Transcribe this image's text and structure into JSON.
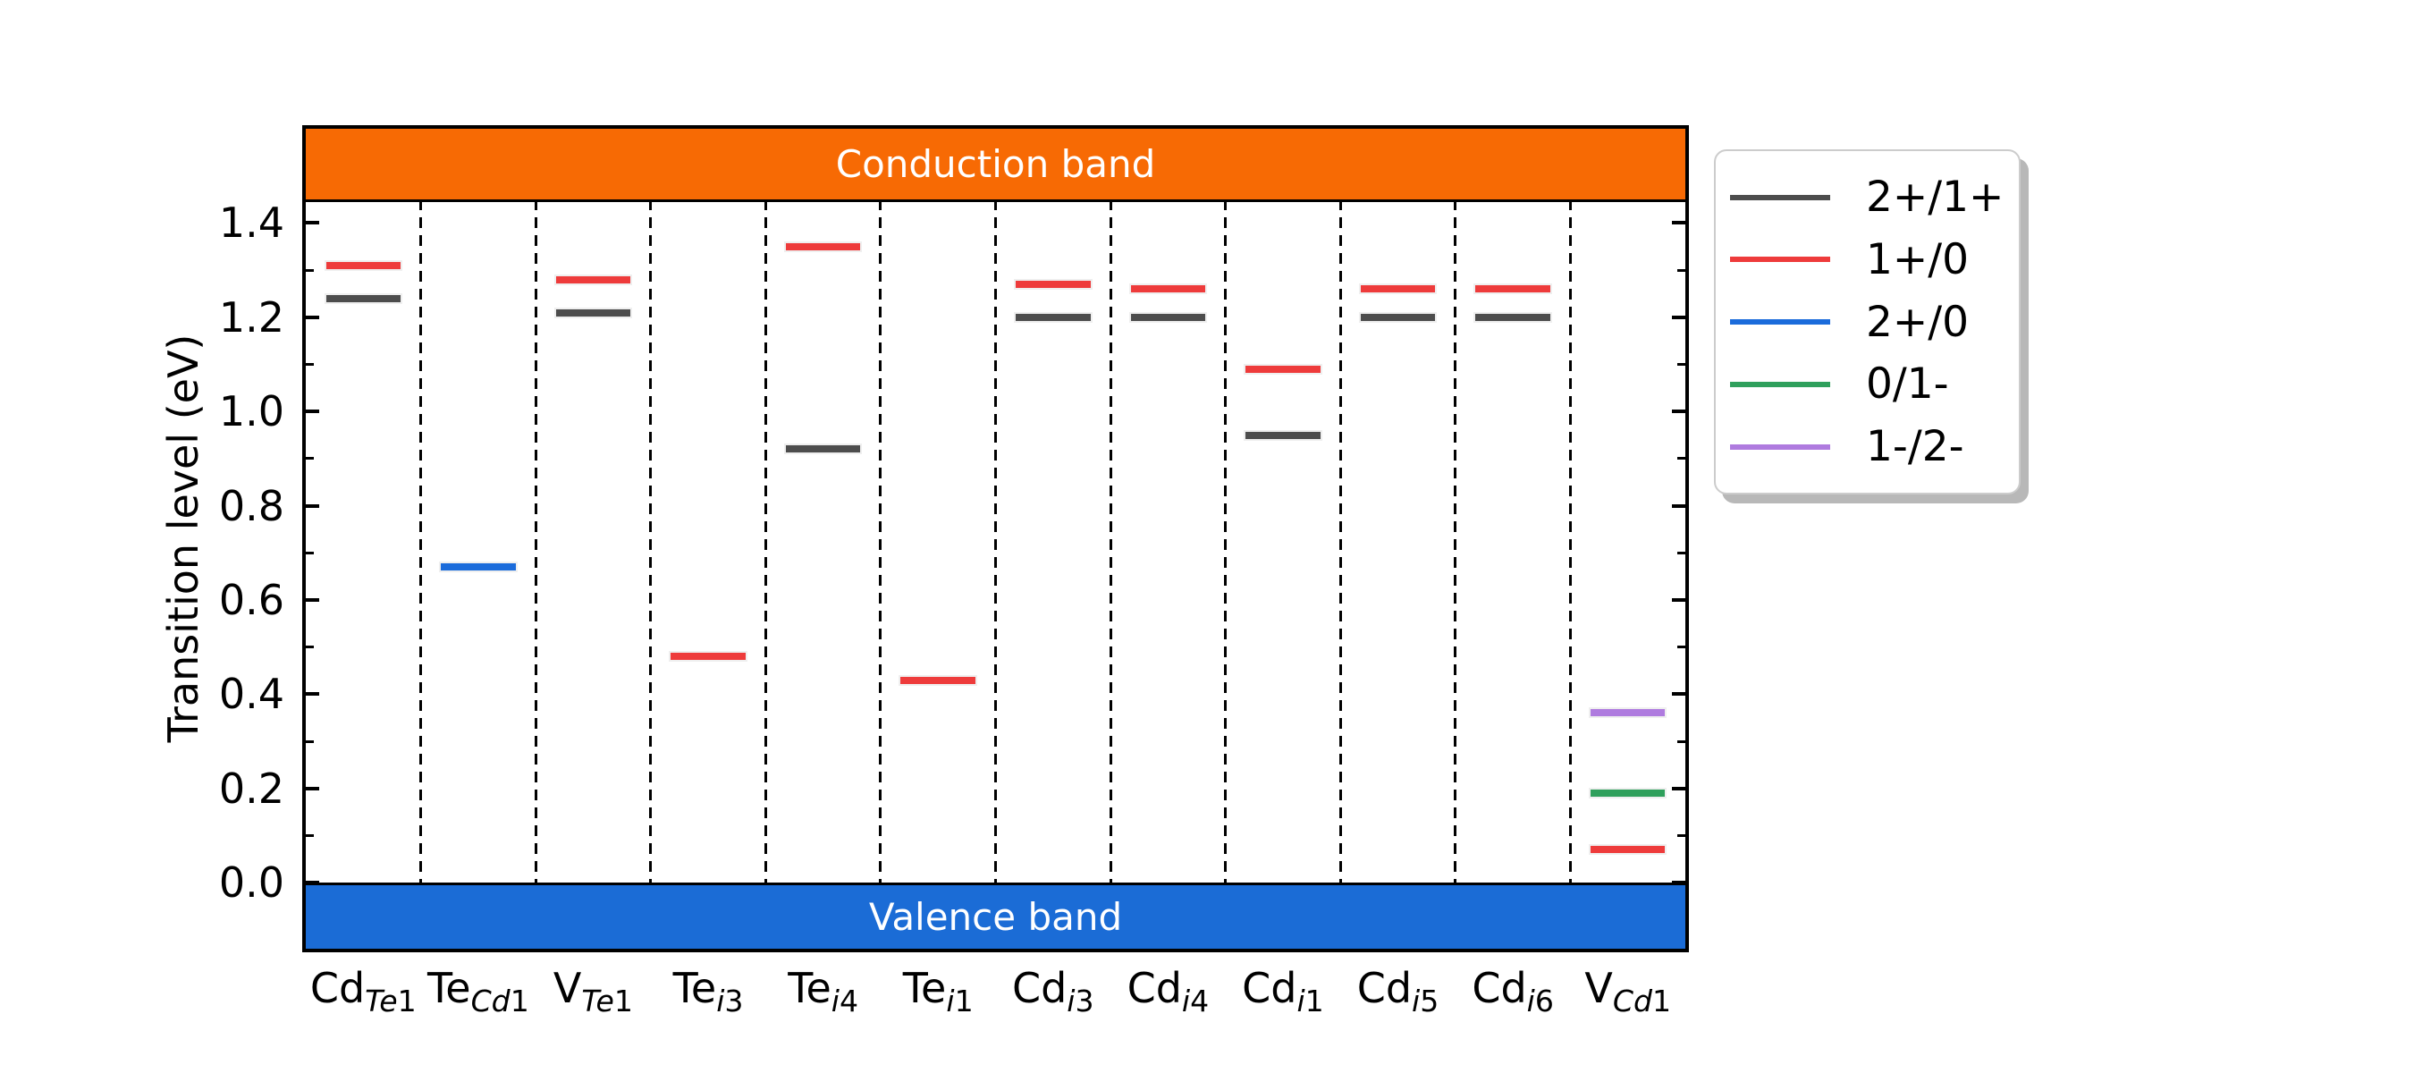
{
  "figure": {
    "background": "#ffffff"
  },
  "chart_data": {
    "type": "scatter",
    "subtype": "defect-transition-level-diagram",
    "title": "",
    "xlabel": "",
    "ylabel": "Transition level (eV)",
    "ylim": [
      -0.14,
      1.6
    ],
    "vbm": 0.0,
    "cbm": 1.45,
    "grid": "dashed-vertical-column-separators",
    "legend_position": "outside-upper-right",
    "bands": {
      "conduction": {
        "label": "Conduction band",
        "color": "#F76A04",
        "range": [
          1.45,
          1.6
        ]
      },
      "valence": {
        "label": "Valence band",
        "color": "#1B6CD6",
        "range": [
          -0.14,
          0.0
        ]
      }
    },
    "yticks": {
      "major": [
        0.0,
        0.2,
        0.4,
        0.6,
        0.8,
        1.0,
        1.2,
        1.4
      ],
      "major_labels": [
        "0.0",
        "0.2",
        "0.4",
        "0.6",
        "0.8",
        "1.0",
        "1.2",
        "1.4"
      ],
      "minor": [
        0.1,
        0.3,
        0.5,
        0.7,
        0.9,
        1.1,
        1.3
      ]
    },
    "categories": [
      "CdTe1",
      "TeCd1",
      "VTe1",
      "Tei3",
      "Tei4",
      "Tei1",
      "Cdi3",
      "Cdi4",
      "Cdi1",
      "Cdi5",
      "Cdi6",
      "VCd1"
    ],
    "category_labels": [
      {
        "base": "Cd",
        "sub_italic": "Te",
        "sub_plain": "1"
      },
      {
        "base": "Te",
        "sub_italic": "Cd",
        "sub_plain": "1"
      },
      {
        "base": "V",
        "sub_italic": "Te",
        "sub_plain": "1"
      },
      {
        "base": "Te",
        "sub_italic": "i",
        "sub_plain": "3"
      },
      {
        "base": "Te",
        "sub_italic": "i",
        "sub_plain": "4"
      },
      {
        "base": "Te",
        "sub_italic": "i",
        "sub_plain": "1"
      },
      {
        "base": "Cd",
        "sub_italic": "i",
        "sub_plain": "3"
      },
      {
        "base": "Cd",
        "sub_italic": "i",
        "sub_plain": "4"
      },
      {
        "base": "Cd",
        "sub_italic": "i",
        "sub_plain": "1"
      },
      {
        "base": "Cd",
        "sub_italic": "i",
        "sub_plain": "5"
      },
      {
        "base": "Cd",
        "sub_italic": "i",
        "sub_plain": "6"
      },
      {
        "base": "V",
        "sub_italic": "Cd",
        "sub_plain": "1"
      }
    ],
    "series": [
      {
        "name": "2+/1+",
        "color": "#4D4D4D",
        "values": [
          1.24,
          null,
          1.21,
          null,
          0.92,
          null,
          1.2,
          1.2,
          0.95,
          1.2,
          1.2,
          null
        ]
      },
      {
        "name": "1+/0",
        "color": "#EE3B3B",
        "values": [
          1.31,
          null,
          1.28,
          0.48,
          1.35,
          0.43,
          1.27,
          1.26,
          1.09,
          1.26,
          1.26,
          0.07
        ]
      },
      {
        "name": "2+/0",
        "color": "#1B6CDB",
        "values": [
          null,
          0.67,
          null,
          null,
          null,
          null,
          null,
          null,
          null,
          null,
          null,
          null
        ]
      },
      {
        "name": "0/1-",
        "color": "#2FA05C",
        "values": [
          null,
          null,
          null,
          null,
          null,
          null,
          null,
          null,
          null,
          null,
          null,
          0.19
        ]
      },
      {
        "name": "1-/2-",
        "color": "#AF7BDF",
        "values": [
          null,
          null,
          null,
          null,
          null,
          null,
          null,
          null,
          null,
          null,
          null,
          0.36
        ]
      }
    ]
  }
}
